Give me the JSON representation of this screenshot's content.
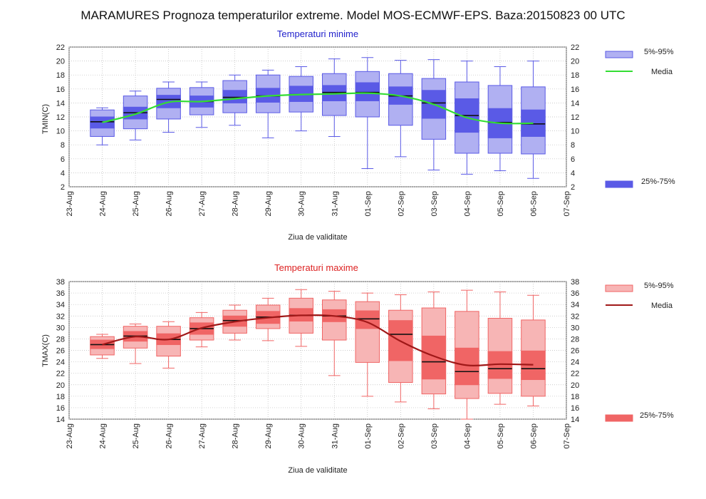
{
  "title": "MARAMURES  Prognoza temperaturilor extreme.  Model MOS-ECMWF-EPS. Baza:20150823 00 UTC",
  "colors": {
    "min_box": "#5a5ae6",
    "min_box_light": "#b0b0f2",
    "min_mean": "#33dd33",
    "max_box": "#f06565",
    "max_box_light": "#f7b5b5",
    "max_mean": "#a01818",
    "plot_title_min": "#2222cc",
    "plot_title_max": "#dd2222"
  },
  "chart_data": [
    {
      "type": "box",
      "title": "Temperaturi minime",
      "xlabel": "Ziua de validitate",
      "ylabel": "TMIN(C)",
      "ylim": [
        2,
        22
      ],
      "yticks": [
        2,
        4,
        6,
        8,
        10,
        12,
        14,
        16,
        18,
        20,
        22
      ],
      "grid": true,
      "legend_position": "right",
      "legend": {
        "band_5_95": "5%-95%",
        "mean": "Media",
        "band_25_75": "25%-75%"
      },
      "categories": [
        "23-Aug",
        "24-Aug",
        "25-Aug",
        "26-Aug",
        "27-Aug",
        "28-Aug",
        "29-Aug",
        "30-Aug",
        "31-Aug",
        "01-Sep",
        "02-Sep",
        "03-Sep",
        "04-Sep",
        "05-Sep",
        "06-Sep",
        "07-Sep"
      ],
      "series": [
        {
          "x": "24-Aug",
          "p5": 8.0,
          "q1": 10.4,
          "median": 11.3,
          "q3": 12.0,
          "p95": 13.3,
          "b5": 9.2,
          "b95": 13.0,
          "mean": 11.2
        },
        {
          "x": "25-Aug",
          "p5": 8.7,
          "q1": 11.7,
          "median": 12.6,
          "q3": 13.4,
          "p95": 15.7,
          "b5": 10.3,
          "b95": 15.0,
          "mean": 12.4
        },
        {
          "x": "26-Aug",
          "p5": 9.8,
          "q1": 13.3,
          "median": 14.5,
          "q3": 15.1,
          "p95": 17.0,
          "b5": 11.7,
          "b95": 16.1,
          "mean": 14.1
        },
        {
          "x": "27-Aug",
          "p5": 10.5,
          "q1": 13.4,
          "median": 14.2,
          "q3": 15.0,
          "p95": 17.0,
          "b5": 12.3,
          "b95": 16.2,
          "mean": 14.2
        },
        {
          "x": "28-Aug",
          "p5": 10.8,
          "q1": 14.0,
          "median": 14.8,
          "q3": 15.8,
          "p95": 18.0,
          "b5": 12.6,
          "b95": 17.2,
          "mean": 14.6
        },
        {
          "x": "29-Aug",
          "p5": 9.0,
          "q1": 14.1,
          "median": 15.0,
          "q3": 16.1,
          "p95": 18.7,
          "b5": 12.6,
          "b95": 18.0,
          "mean": 15.0
        },
        {
          "x": "30-Aug",
          "p5": 10.0,
          "q1": 14.2,
          "median": 15.2,
          "q3": 16.4,
          "p95": 19.2,
          "b5": 12.7,
          "b95": 17.8,
          "mean": 15.2
        },
        {
          "x": "31-Aug",
          "p5": 9.2,
          "q1": 14.3,
          "median": 15.5,
          "q3": 16.5,
          "p95": 20.3,
          "b5": 12.2,
          "b95": 18.2,
          "mean": 15.3
        },
        {
          "x": "01-Sep",
          "p5": 4.6,
          "q1": 14.3,
          "median": 15.5,
          "q3": 16.9,
          "p95": 20.5,
          "b5": 12.0,
          "b95": 18.5,
          "mean": 15.4
        },
        {
          "x": "02-Sep",
          "p5": 6.3,
          "q1": 13.8,
          "median": 15.0,
          "q3": 16.3,
          "p95": 20.1,
          "b5": 10.8,
          "b95": 18.2,
          "mean": 15.0
        },
        {
          "x": "03-Sep",
          "p5": 4.4,
          "q1": 11.8,
          "median": 14.0,
          "q3": 15.8,
          "p95": 20.2,
          "b5": 8.8,
          "b95": 17.5,
          "mean": 13.8
        },
        {
          "x": "04-Sep",
          "p5": 3.8,
          "q1": 9.8,
          "median": 12.2,
          "q3": 14.6,
          "p95": 20.0,
          "b5": 6.8,
          "b95": 17.0,
          "mean": 11.9
        },
        {
          "x": "05-Sep",
          "p5": 4.3,
          "q1": 9.0,
          "median": 11.2,
          "q3": 13.2,
          "p95": 19.2,
          "b5": 6.8,
          "b95": 16.5,
          "mean": 11.1
        },
        {
          "x": "06-Sep",
          "p5": 3.2,
          "q1": 9.2,
          "median": 11.0,
          "q3": 13.0,
          "p95": 20.0,
          "b5": 6.7,
          "b95": 16.3,
          "mean": 11.1
        }
      ]
    },
    {
      "type": "box",
      "title": "Temperaturi maxime",
      "xlabel": "Ziua de validitate",
      "ylabel": "TMAX(C)",
      "ylim": [
        14,
        38
      ],
      "yticks": [
        14,
        16,
        18,
        20,
        22,
        24,
        26,
        28,
        30,
        32,
        34,
        36,
        38
      ],
      "grid": true,
      "legend_position": "right",
      "legend": {
        "band_5_95": "5%-95%",
        "mean": "Media",
        "band_25_75": "25%-75%"
      },
      "categories": [
        "23-Aug",
        "24-Aug",
        "25-Aug",
        "26-Aug",
        "27-Aug",
        "28-Aug",
        "29-Aug",
        "30-Aug",
        "31-Aug",
        "01-Sep",
        "02-Sep",
        "03-Sep",
        "04-Sep",
        "05-Sep",
        "06-Sep",
        "07-Sep"
      ],
      "series": [
        {
          "x": "24-Aug",
          "p5": 24.6,
          "q1": 26.3,
          "median": 27.0,
          "q3": 27.8,
          "p95": 28.8,
          "b5": 25.2,
          "b95": 28.4,
          "mean": 27.0
        },
        {
          "x": "25-Aug",
          "p5": 23.7,
          "q1": 27.6,
          "median": 28.5,
          "q3": 29.3,
          "p95": 30.6,
          "b5": 26.4,
          "b95": 30.2,
          "mean": 28.4
        },
        {
          "x": "26-Aug",
          "p5": 22.9,
          "q1": 27.0,
          "median": 27.9,
          "q3": 28.9,
          "p95": 31.0,
          "b5": 25.0,
          "b95": 30.2,
          "mean": 27.9
        },
        {
          "x": "27-Aug",
          "p5": 26.6,
          "q1": 28.8,
          "median": 29.8,
          "q3": 30.8,
          "p95": 32.6,
          "b5": 27.8,
          "b95": 31.7,
          "mean": 29.9
        },
        {
          "x": "28-Aug",
          "p5": 27.8,
          "q1": 30.2,
          "median": 31.2,
          "q3": 32.0,
          "p95": 33.9,
          "b5": 29.0,
          "b95": 33.0,
          "mean": 31.0
        },
        {
          "x": "29-Aug",
          "p5": 27.7,
          "q1": 30.7,
          "median": 31.8,
          "q3": 32.8,
          "p95": 35.1,
          "b5": 29.8,
          "b95": 33.9,
          "mean": 31.7
        },
        {
          "x": "30-Aug",
          "p5": 26.7,
          "q1": 31.1,
          "median": 32.1,
          "q3": 33.3,
          "p95": 36.6,
          "b5": 29.0,
          "b95": 35.1,
          "mean": 32.1
        },
        {
          "x": "31-Aug",
          "p5": 21.6,
          "q1": 31.0,
          "median": 32.0,
          "q3": 33.1,
          "p95": 36.3,
          "b5": 27.8,
          "b95": 34.8,
          "mean": 32.0
        },
        {
          "x": "01-Sep",
          "p5": 18.0,
          "q1": 29.8,
          "median": 31.5,
          "q3": 32.9,
          "p95": 36.0,
          "b5": 23.9,
          "b95": 34.5,
          "mean": 30.9
        },
        {
          "x": "02-Sep",
          "p5": 17.0,
          "q1": 24.2,
          "median": 28.8,
          "q3": 31.2,
          "p95": 35.7,
          "b5": 20.4,
          "b95": 33.0,
          "mean": 27.6
        },
        {
          "x": "03-Sep",
          "p5": 15.8,
          "q1": 21.0,
          "median": 24.0,
          "q3": 28.5,
          "p95": 36.2,
          "b5": 18.4,
          "b95": 33.4,
          "mean": 25.0
        },
        {
          "x": "04-Sep",
          "p5": 14.0,
          "q1": 20.0,
          "median": 22.3,
          "q3": 26.4,
          "p95": 36.5,
          "b5": 17.6,
          "b95": 32.8,
          "mean": 23.4
        },
        {
          "x": "05-Sep",
          "p5": 16.6,
          "q1": 21.1,
          "median": 22.8,
          "q3": 25.8,
          "p95": 36.2,
          "b5": 18.5,
          "b95": 31.6,
          "mean": 23.6
        },
        {
          "x": "06-Sep",
          "p5": 16.3,
          "q1": 20.9,
          "median": 22.8,
          "q3": 25.9,
          "p95": 35.6,
          "b5": 18.0,
          "b95": 31.3,
          "mean": 23.5
        }
      ]
    }
  ]
}
